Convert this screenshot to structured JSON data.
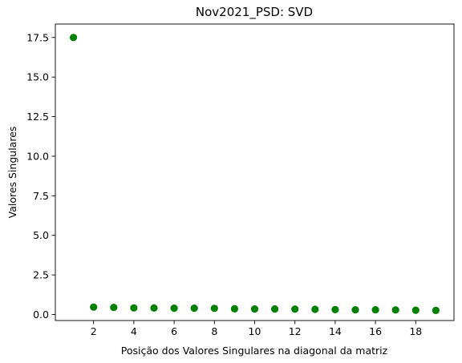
{
  "chart_data": {
    "type": "scatter",
    "title": "Nov2021_PSD: SVD",
    "xlabel": "Posição dos Valores Singulares na diagonal da matriz",
    "ylabel": "Valores Singulares",
    "xlim": [
      0.1,
      19.9
    ],
    "ylim": [
      -0.38,
      18.35
    ],
    "xticks": [
      2,
      4,
      6,
      8,
      10,
      12,
      14,
      16,
      18
    ],
    "xtick_labels": [
      "2",
      "4",
      "6",
      "8",
      "10",
      "12",
      "14",
      "16",
      "18"
    ],
    "yticks": [
      0,
      2.5,
      5,
      7.5,
      10,
      12.5,
      15,
      17.5
    ],
    "ytick_labels": [
      "0.0",
      "2.5",
      "5.0",
      "7.5",
      "10.0",
      "12.5",
      "15.0",
      "17.5"
    ],
    "grid": false,
    "marker_color": "#008000",
    "series": [
      {
        "x": [
          1,
          2,
          3,
          4,
          5,
          6,
          7,
          8,
          9,
          10,
          11,
          12,
          13,
          14,
          15,
          16,
          17,
          18,
          19
        ],
        "values": [
          17.5,
          0.47,
          0.45,
          0.42,
          0.41,
          0.4,
          0.4,
          0.39,
          0.36,
          0.35,
          0.35,
          0.34,
          0.33,
          0.31,
          0.3,
          0.3,
          0.29,
          0.27,
          0.26
        ]
      }
    ]
  }
}
